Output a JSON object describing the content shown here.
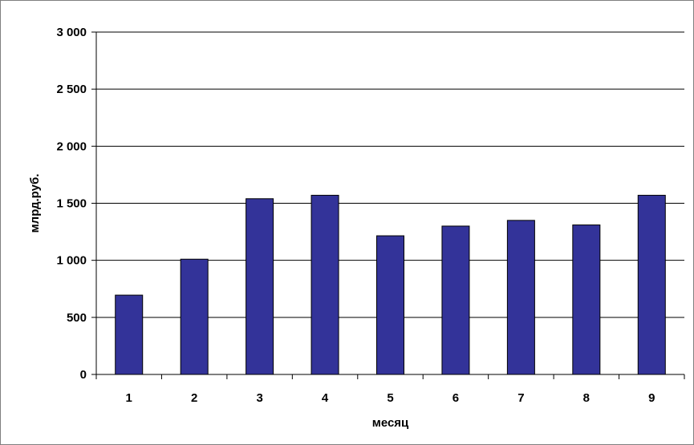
{
  "chart_data": {
    "type": "bar",
    "categories": [
      "1",
      "2",
      "3",
      "4",
      "5",
      "6",
      "7",
      "8",
      "9"
    ],
    "values": [
      695,
      1010,
      1540,
      1570,
      1215,
      1300,
      1350,
      1310,
      1570
    ],
    "title": "",
    "xlabel": "месяц",
    "ylabel": "млрд.руб.",
    "ylim": [
      0,
      3000
    ],
    "yticks": [
      0,
      500,
      1000,
      1500,
      2000,
      2500,
      3000
    ],
    "ytick_labels": [
      "0",
      "500",
      "1 000",
      "1 500",
      "2 000",
      "2 500",
      "3 000"
    ],
    "grid": true,
    "legend": "none",
    "bar_color": "#333399"
  }
}
